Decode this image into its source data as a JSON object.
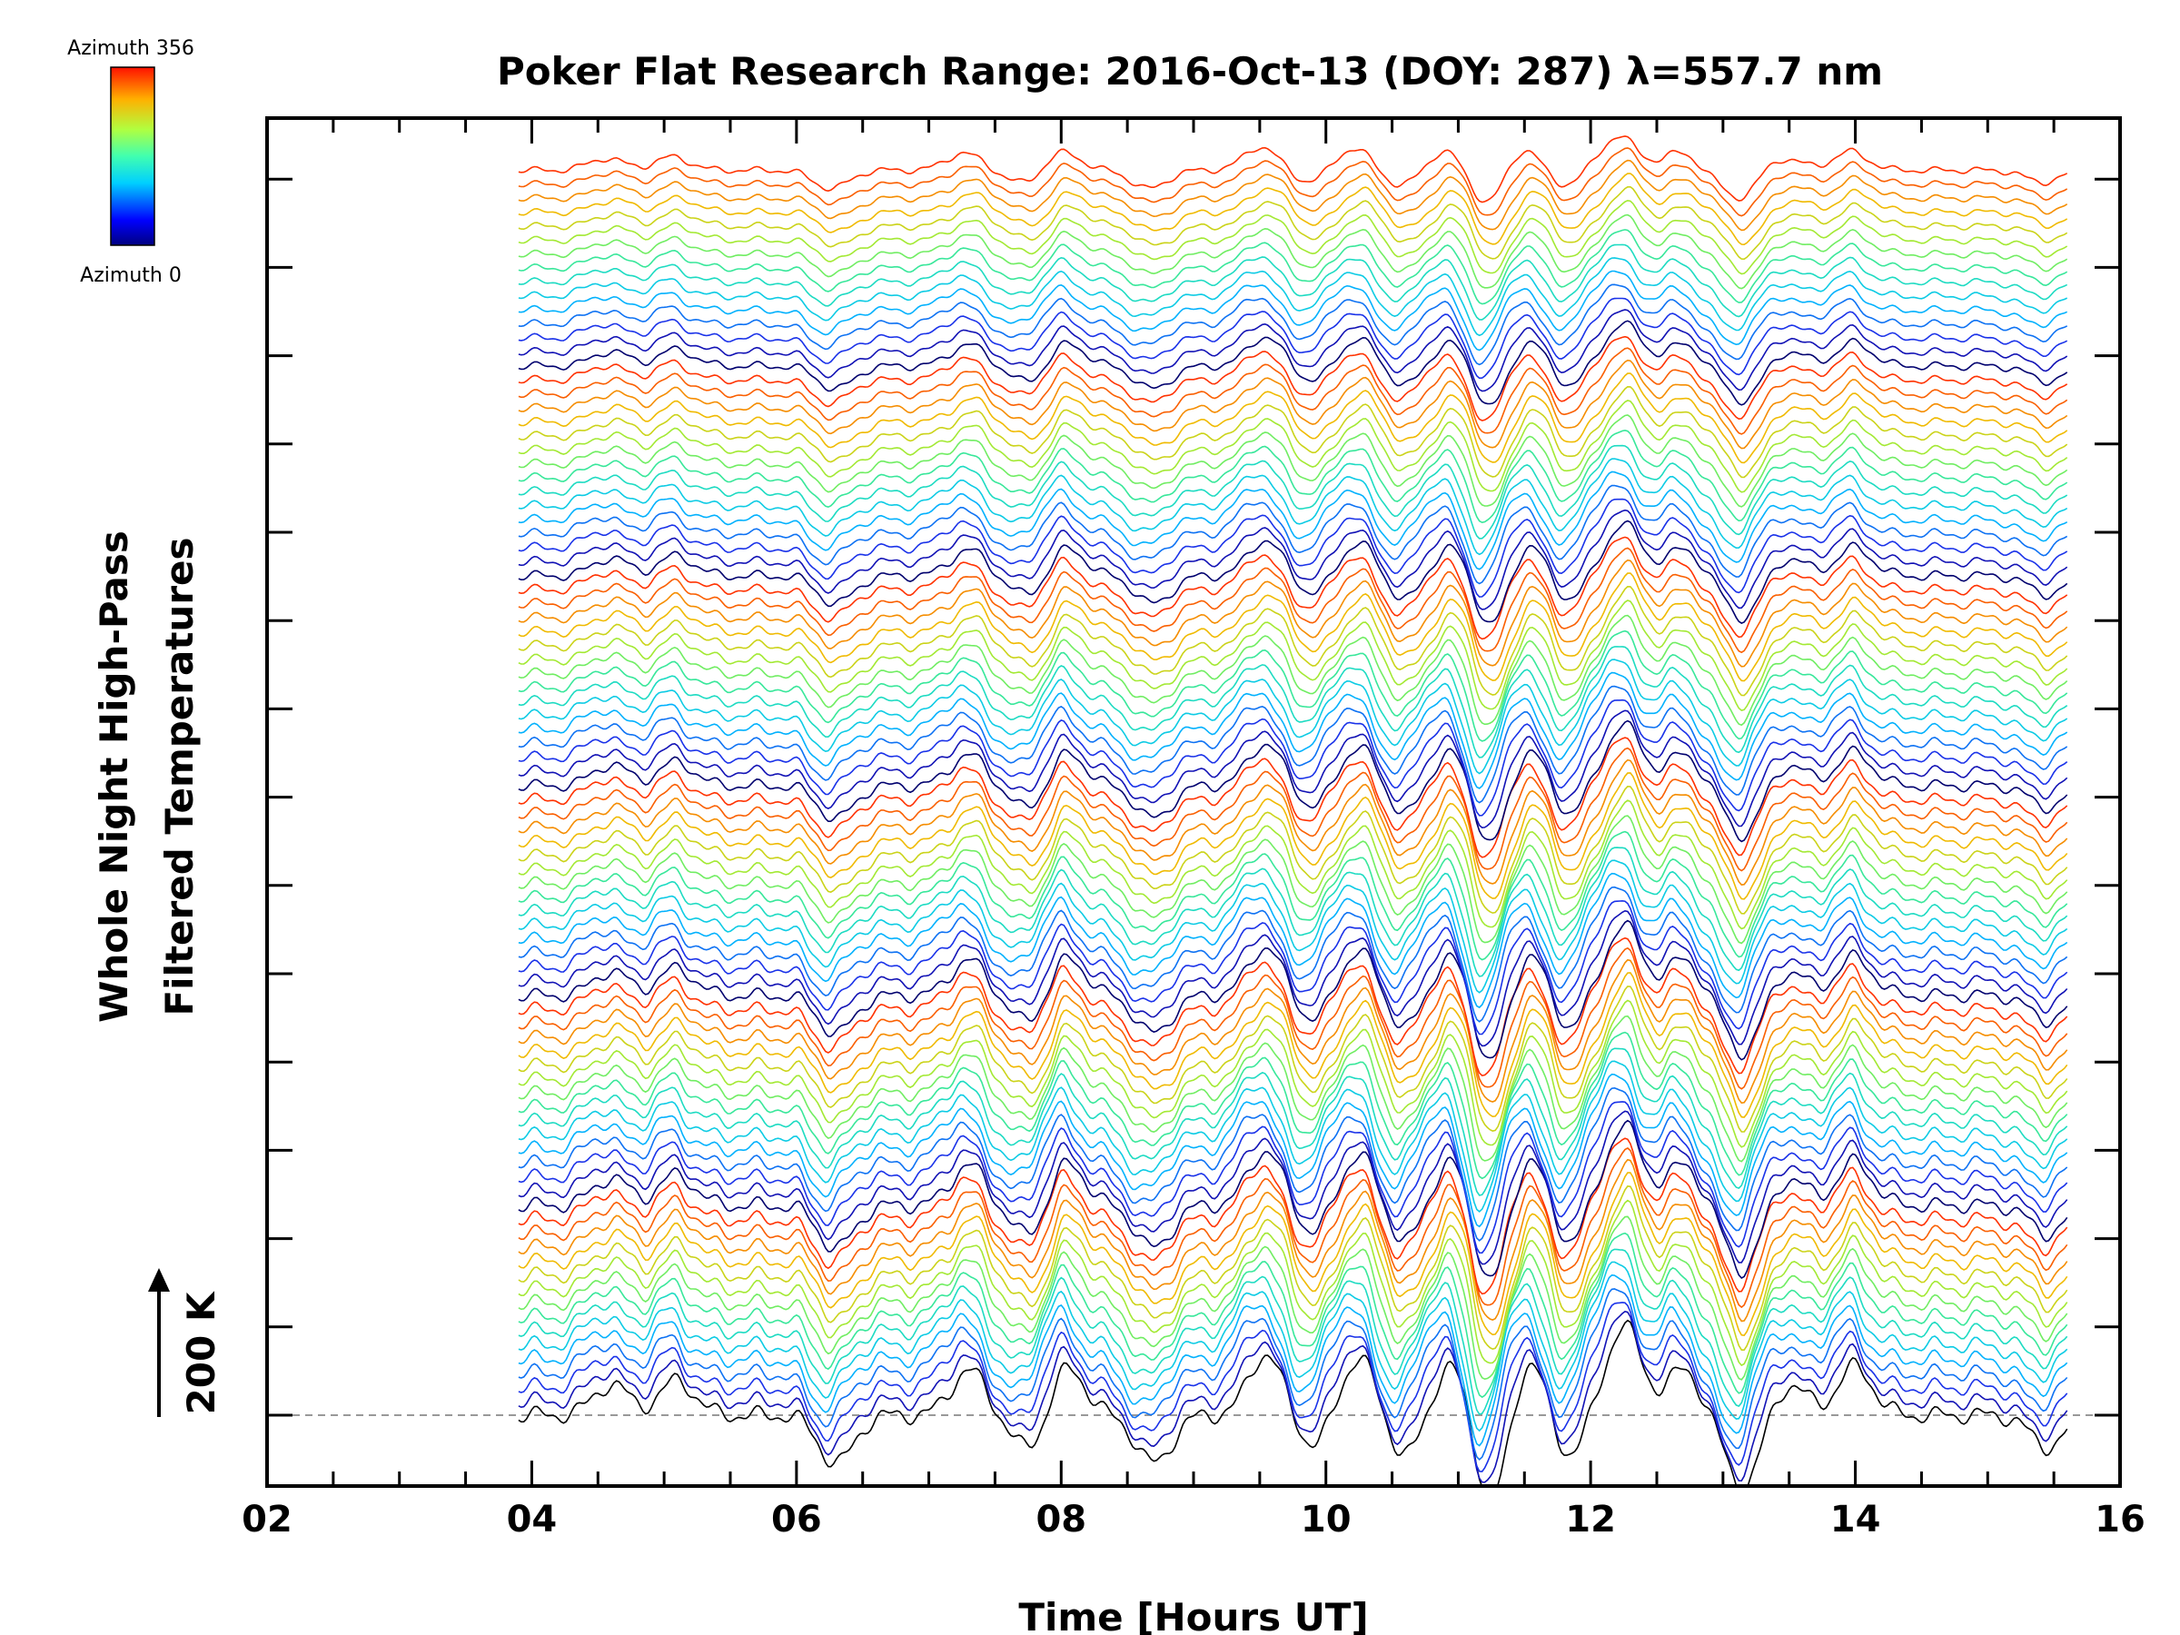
{
  "chart_data": {
    "type": "line",
    "title": "Poker Flat Research Range: 2016-Oct-13 (DOY: 287) λ=557.7 nm",
    "xlabel": "Time [Hours UT]",
    "ylabel_line1": "Whole Night High-Pass",
    "ylabel_line2": "Filtered Temperatures",
    "xlim": [
      2,
      16
    ],
    "x_ticks": [
      "02",
      "04",
      "06",
      "08",
      "10",
      "12",
      "14",
      "16"
    ],
    "x_tick_values": [
      2,
      4,
      6,
      8,
      10,
      12,
      14,
      16
    ],
    "data_time_range": [
      3.9,
      15.6
    ],
    "scale_bar": {
      "label": "200 K",
      "value_K": 200
    },
    "colorbar": {
      "top_label": "Azimuth 356",
      "bottom_label": "Azimuth 0",
      "min": 0,
      "max": 356,
      "colormap": "rainbow"
    },
    "azimuth_count": 90,
    "azimuth_step_deg": 4,
    "offset_per_trace_K": 50,
    "baseline": "dashed gray line at the Azimuth 0 trace offset",
    "wave_features": [
      {
        "time": 4.6,
        "amp": 0.9
      },
      {
        "time": 5.1,
        "amp": 1.0
      },
      {
        "time": 6.3,
        "amp": -1.4
      },
      {
        "time": 7.3,
        "amp": 1.3
      },
      {
        "time": 7.75,
        "amp": -1.0
      },
      {
        "time": 8.05,
        "amp": 1.4
      },
      {
        "time": 8.7,
        "amp": -1.4
      },
      {
        "time": 9.55,
        "amp": 1.8
      },
      {
        "time": 9.9,
        "amp": -0.9
      },
      {
        "time": 10.25,
        "amp": 1.7
      },
      {
        "time": 10.6,
        "amp": -1.2
      },
      {
        "time": 10.95,
        "amp": 1.6
      },
      {
        "time": 11.25,
        "amp": -2.6
      },
      {
        "time": 11.55,
        "amp": 1.9
      },
      {
        "time": 11.8,
        "amp": -1.3
      },
      {
        "time": 12.25,
        "amp": 2.6
      },
      {
        "time": 12.7,
        "amp": 1.3
      },
      {
        "time": 13.15,
        "amp": -2.1
      },
      {
        "time": 13.5,
        "amp": 0.9
      },
      {
        "time": 14.0,
        "amp": 1.4
      },
      {
        "time": 15.45,
        "amp": -0.9
      }
    ],
    "colors": {
      "axis": "#000000",
      "baseline": "#999999",
      "background": "#ffffff"
    }
  }
}
